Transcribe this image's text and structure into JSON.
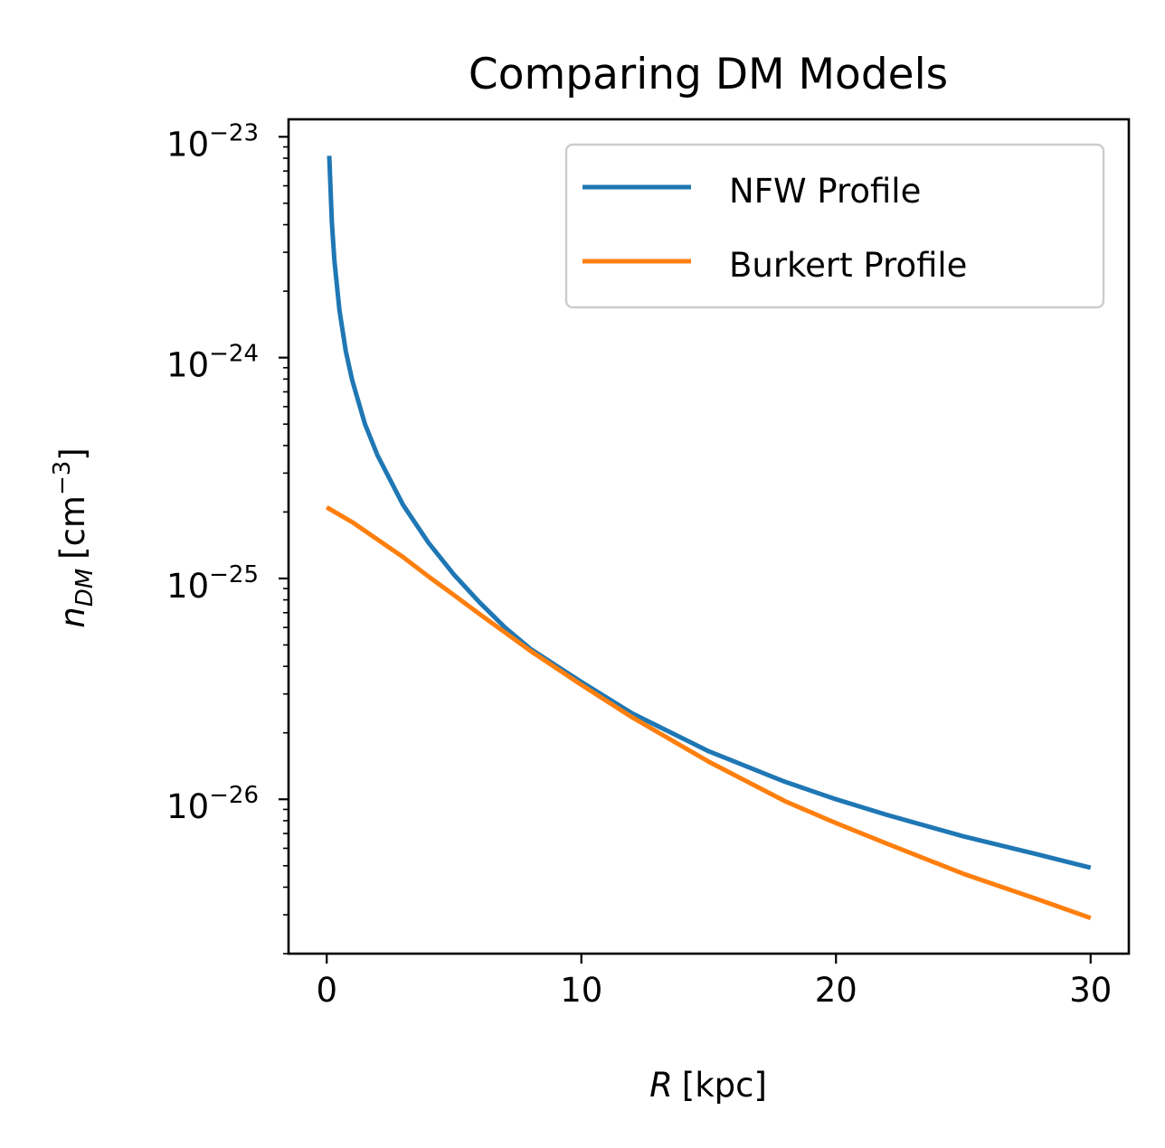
{
  "chart_data": {
    "type": "line",
    "title": "Comparing DM Models",
    "xlabel": "R [kpc]",
    "ylabel": "n_DM [cm^-3]",
    "xlabel_parts": {
      "var": "R",
      "unit": "[kpc]"
    },
    "ylabel_parts": {
      "var": "n",
      "sub": "DM",
      "unit_open": "[cm",
      "exp": "−3",
      "unit_close": "]"
    },
    "xscale": "linear",
    "yscale": "log",
    "xlim": [
      -1.5,
      31.5
    ],
    "ylim": [
      2e-27,
      1.2e-23
    ],
    "xticks": [
      0,
      10,
      20,
      30
    ],
    "xtick_labels": [
      "0",
      "10",
      "20",
      "30"
    ],
    "yticks": [
      {
        "value": 1e-26,
        "base": "10",
        "exp": "−26"
      },
      {
        "value": 1e-25,
        "base": "10",
        "exp": "−25"
      },
      {
        "value": 1e-24,
        "base": "10",
        "exp": "−24"
      },
      {
        "value": 1e-23,
        "base": "10",
        "exp": "−23"
      }
    ],
    "grid": false,
    "legend_position": "top-right",
    "series": [
      {
        "name": "NFW Profile",
        "color": "#1f77b4",
        "x": [
          0.1,
          0.2,
          0.3,
          0.5,
          0.75,
          1,
          1.5,
          2,
          3,
          4,
          5,
          6,
          7,
          8,
          10,
          12,
          15,
          18,
          20,
          22,
          25,
          28,
          30
        ],
        "y": [
          8.2e-24,
          4.1e-24,
          2.75e-24,
          1.64e-24,
          1.07e-24,
          7.9e-25,
          5e-25,
          3.6e-25,
          2.15e-25,
          1.45e-25,
          1.04e-25,
          7.8e-26,
          6e-26,
          4.8e-26,
          3.4e-26,
          2.45e-26,
          1.65e-26,
          1.2e-26,
          1e-26,
          8.5e-27,
          6.8e-27,
          5.6e-27,
          4.9e-27
        ]
      },
      {
        "name": "Burkert Profile",
        "color": "#ff7f0e",
        "x": [
          0,
          1,
          2,
          3,
          4,
          5,
          6,
          7,
          8,
          10,
          12,
          15,
          18,
          20,
          22,
          25,
          28,
          30
        ],
        "y": [
          2.1e-25,
          1.8e-25,
          1.5e-25,
          1.25e-25,
          1.02e-25,
          8.4e-26,
          6.9e-26,
          5.7e-26,
          4.7e-26,
          3.3e-26,
          2.35e-26,
          1.48e-26,
          9.8e-27,
          7.8e-27,
          6.3e-27,
          4.6e-27,
          3.5e-27,
          2.9e-27
        ]
      }
    ]
  }
}
